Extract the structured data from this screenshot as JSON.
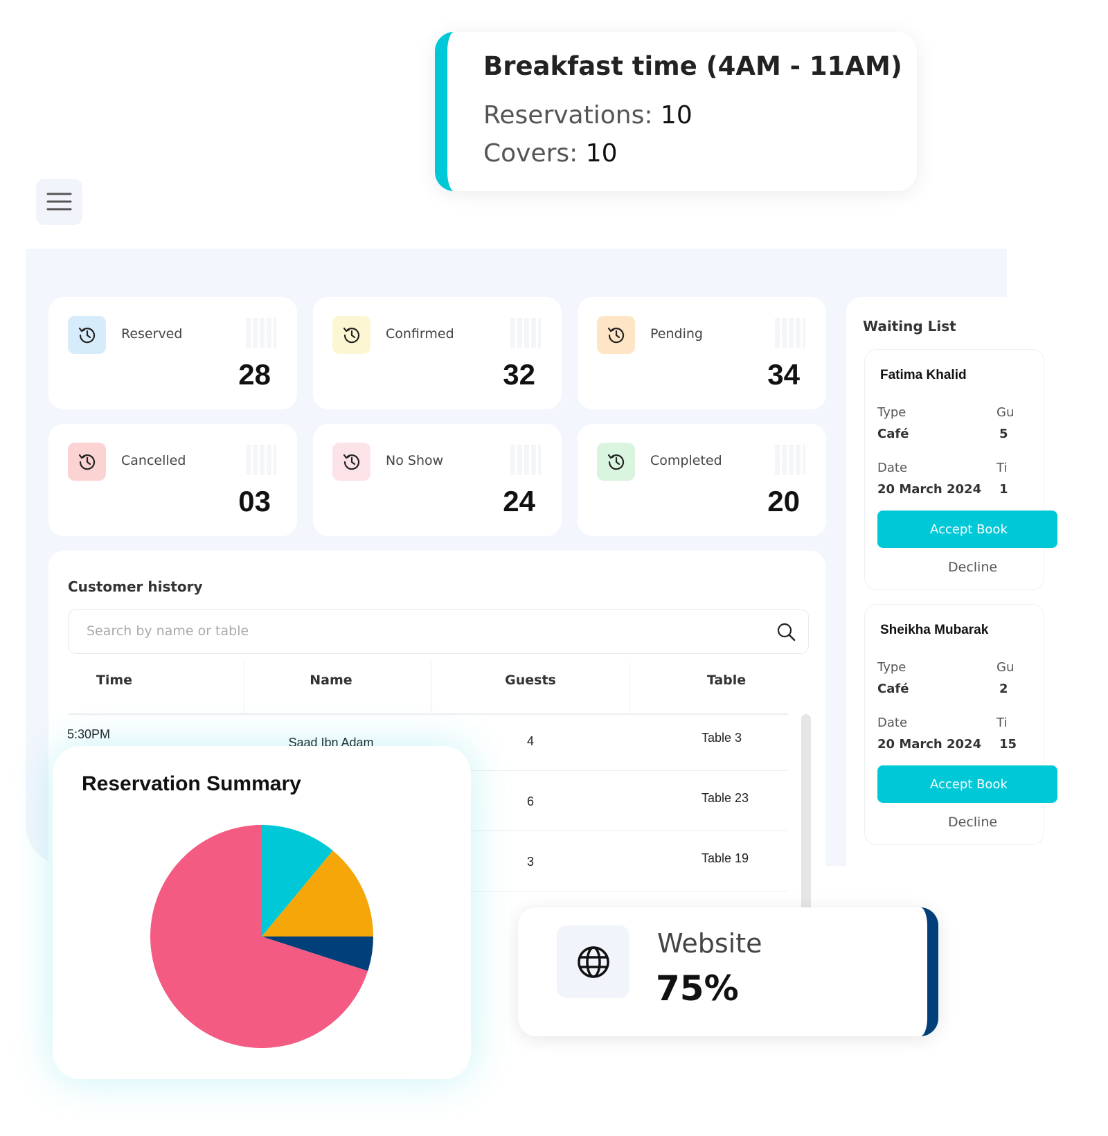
{
  "callout": {
    "title": "Breakfast time (4AM - 11AM)",
    "reservations_label": "Reservations:",
    "reservations": "10",
    "covers_label": "Covers:",
    "covers": "10"
  },
  "stats": [
    {
      "label": "Reserved",
      "value": "28",
      "icon_color": "#d6ecfb"
    },
    {
      "label": "Confirmed",
      "value": "32",
      "icon_color": "#fdf6d3"
    },
    {
      "label": "Pending",
      "value": "34",
      "icon_color": "#fde5c6"
    },
    {
      "label": "Cancelled",
      "value": "03",
      "icon_color": "#fbd3d3"
    },
    {
      "label": "No Show",
      "value": "24",
      "icon_color": "#fbe3e8"
    },
    {
      "label": "Completed",
      "value": "20",
      "icon_color": "#d9f5df"
    }
  ],
  "customer_history": {
    "title": "Customer history",
    "search_placeholder": "Search by name or table",
    "columns": [
      "Time",
      "Name",
      "Guests",
      "Table"
    ],
    "rows": [
      {
        "time": "5:30PM",
        "name": "Saad Ibn Adam",
        "guests": "4",
        "table": "Table 3"
      },
      {
        "guests": "6",
        "table": "Table 23"
      },
      {
        "guests": "3",
        "table": "Table 19"
      }
    ]
  },
  "waiting_list": {
    "title": "Waiting List",
    "entries": [
      {
        "name": "Fatima Khalid",
        "type_label": "Type",
        "type": "Café",
        "guests_label": "Gu",
        "guests": "5",
        "date_label": "Date",
        "date": "20 March 2024",
        "time_label": "Ti",
        "time": "1",
        "accept": "Accept Book",
        "decline": "Decline"
      },
      {
        "name": "Sheikha Mubarak",
        "type_label": "Type",
        "type": "Café",
        "guests_label": "Gu",
        "guests": "2",
        "date_label": "Date",
        "date": "20 March 2024",
        "time_label": "Ti",
        "time": "15",
        "accept": "Accept Book",
        "decline": "Decline"
      }
    ]
  },
  "reservation_summary": {
    "type": "pie",
    "title": "Reservation Summary",
    "values": [
      11,
      14,
      5,
      70
    ],
    "colors": [
      "#00c8d7",
      "#f5a70a",
      "#003f7a",
      "#f45b82"
    ]
  },
  "website": {
    "label": "Website",
    "value": "75%"
  }
}
